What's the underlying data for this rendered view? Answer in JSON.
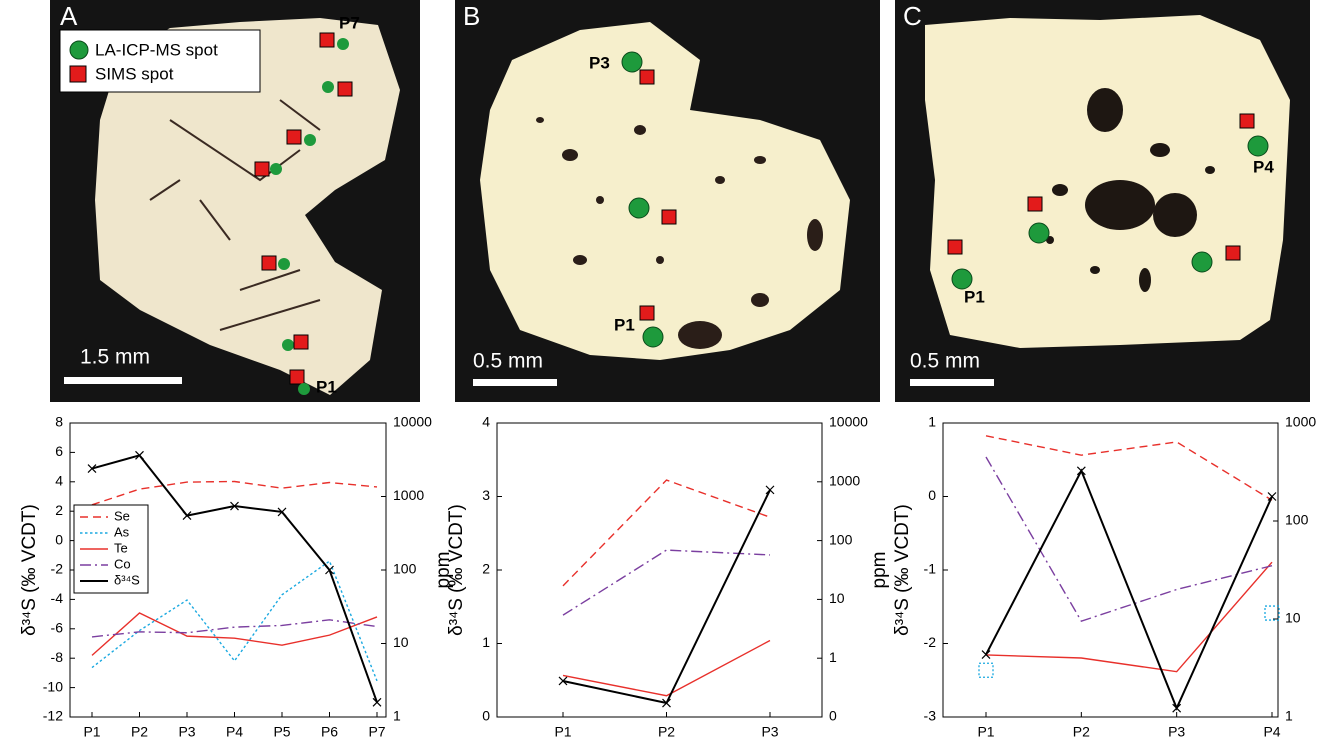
{
  "panels": [
    {
      "label": "A",
      "legend": [
        "LA-ICP-MS spot",
        "SIMS spot"
      ],
      "spot_labels": [
        "P7",
        "P1"
      ],
      "scale_bar": "1.5 mm"
    },
    {
      "label": "B",
      "spot_labels": [
        "P3",
        "P1"
      ],
      "scale_bar": "0.5 mm"
    },
    {
      "label": "C",
      "spot_labels": [
        "P4",
        "P1"
      ],
      "scale_bar": "0.5 mm"
    }
  ],
  "chart_data": [
    {
      "type": "line",
      "y_label": "δ³⁴S (‰ VCDT)",
      "y2_label": "ppm",
      "categories": [
        "P1",
        "P2",
        "P3",
        "P4",
        "P5",
        "P6",
        "P7"
      ],
      "ylim": [
        -12,
        8
      ],
      "yticks": [
        -12,
        -10,
        -8,
        -6,
        -4,
        -2,
        0,
        2,
        4,
        6,
        8
      ],
      "y2lim": [
        1,
        10000
      ],
      "y2ticks": [
        1,
        10,
        100,
        1000,
        10000
      ],
      "y2log": true,
      "legend": "center left",
      "series": [
        {
          "name": "Se",
          "color": "#e8302b",
          "style": "dashed",
          "axis": "y2",
          "values": [
            770,
            1260,
            1570,
            1600,
            1300,
            1550,
            1350
          ]
        },
        {
          "name": "As",
          "color": "#1ba9e0",
          "style": "dotted",
          "axis": "y2",
          "values": [
            4.7,
            15,
            39,
            5.8,
            46,
            132,
            3.1
          ]
        },
        {
          "name": "Te",
          "color": "#e8302b",
          "style": "solid",
          "axis": "y2",
          "values": [
            6.9,
            26,
            12.6,
            11.8,
            9.5,
            13,
            23
          ]
        },
        {
          "name": "Co",
          "color": "#7b3fa0",
          "style": "dashdot",
          "axis": "y2",
          "values": [
            12.3,
            14.4,
            14,
            16.7,
            17.6,
            21,
            17
          ]
        },
        {
          "name": "δ³⁴S",
          "color": "#000000",
          "style": "solid",
          "marker": "x",
          "values": [
            4.9,
            5.8,
            1.7,
            2.35,
            1.95,
            -2.0,
            -11.0
          ]
        }
      ]
    },
    {
      "type": "line",
      "y_label": "δ³⁴S (‰ VCDT)",
      "y2_label": "ppm",
      "categories": [
        "P1",
        "P2",
        "P3"
      ],
      "ylim": [
        0,
        4
      ],
      "yticks": [
        0,
        1,
        2,
        3,
        4
      ],
      "y2lim": [
        0.1,
        10000
      ],
      "y2ticks": [
        {
          "value": 0.1,
          "label": "0"
        },
        1,
        10,
        100,
        1000,
        10000
      ],
      "y2log": true,
      "series": [
        {
          "color": "#e8302b",
          "style": "dashed",
          "axis": "y2",
          "values": [
            17,
            1070,
            250
          ]
        },
        {
          "color": "#7b3fa0",
          "style": "dashdot",
          "axis": "y2",
          "values": [
            5.4,
            69,
            57
          ]
        },
        {
          "color": "#e8302b",
          "style": "solid",
          "axis": "y2",
          "values": [
            0.51,
            0.23,
            2.0
          ]
        },
        {
          "color": "#000000",
          "style": "solid",
          "marker": "x",
          "values": [
            0.49,
            0.19,
            3.09
          ]
        }
      ]
    },
    {
      "type": "line",
      "y_label": "δ³⁴S (‰ VCDT)",
      "y2_label": "ppm",
      "categories": [
        "P1",
        "P2",
        "P3",
        "P4"
      ],
      "ylim": [
        -3,
        1
      ],
      "yticks": [
        -3,
        -2,
        -1,
        0,
        1
      ],
      "y2lim": [
        1,
        1000
      ],
      "y2ticks": [
        1,
        10,
        100,
        1000
      ],
      "y2log": true,
      "series": [
        {
          "color": "#e8302b",
          "style": "dashed",
          "axis": "y2",
          "values": [
            740,
            470,
            640,
            163
          ]
        },
        {
          "color": "#1ba9e0",
          "style": "none",
          "marker": "square",
          "axis": "y2",
          "values": [
            3.0,
            null,
            null,
            11.5
          ]
        },
        {
          "color": "#e8302b",
          "style": "solid",
          "axis": "y2",
          "values": [
            4.3,
            4.0,
            2.9,
            38
          ]
        },
        {
          "color": "#7b3fa0",
          "style": "dashdot",
          "axis": "y2",
          "values": [
            450,
            9.5,
            20,
            35
          ]
        },
        {
          "color": "#000000",
          "style": "solid",
          "marker": "x",
          "values": [
            -2.15,
            0.35,
            -2.88,
            0
          ]
        }
      ]
    }
  ]
}
